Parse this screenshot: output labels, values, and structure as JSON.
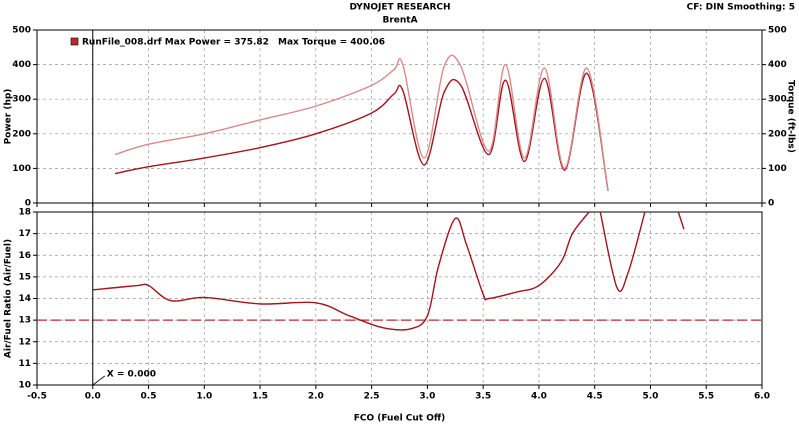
{
  "header": {
    "title": "DYNOJET RESEARCH",
    "subtitle": "BrentA",
    "settings": "CF: DIN  Smoothing: 5"
  },
  "chart_data": [
    {
      "type": "line",
      "ylabel": "Power (hp)",
      "y2label": "Torque (ft-lbs)",
      "legend": {
        "power": "RunFile_008.drf Max Power = 375.82",
        "torque": "Max Torque = 400.06",
        "color": "#c0282d"
      },
      "x": [
        0.2,
        0.5,
        1.0,
        1.5,
        2.0,
        2.5,
        2.7,
        2.78,
        2.97,
        3.15,
        3.3,
        3.55,
        3.7,
        3.87,
        4.05,
        4.23,
        4.43,
        4.62
      ],
      "series": [
        {
          "name": "Power",
          "color": "#a3141c",
          "values": [
            85,
            105,
            130,
            160,
            200,
            260,
            315,
            325,
            110,
            320,
            340,
            140,
            355,
            120,
            360,
            95,
            375,
            35
          ]
        },
        {
          "name": "Torque",
          "color": "#d98a8a",
          "axis": "y2",
          "values": [
            140,
            170,
            200,
            240,
            280,
            340,
            385,
            400,
            130,
            395,
            395,
            150,
            400,
            130,
            390,
            100,
            390,
            35
          ]
        }
      ],
      "xlim": [
        -0.5,
        6.0
      ],
      "xticks": [
        -0.5,
        0,
        0.5,
        1,
        1.5,
        2,
        2.5,
        3,
        3.5,
        4,
        4.5,
        5,
        5.5,
        6
      ],
      "ylim": [
        0,
        500
      ],
      "yticks": [
        0,
        100,
        200,
        300,
        400,
        500
      ],
      "y2lim": [
        0,
        500
      ],
      "y2ticks": [
        0,
        100,
        200,
        300,
        400,
        500
      ],
      "grid": true
    },
    {
      "type": "line",
      "ylabel": "Air/Fuel Ratio (Air/Fuel)",
      "xlabel": "FCO (Fuel Cut Off)",
      "annotation": "X = 0.000",
      "cursor_x": 0,
      "threshold": 13,
      "threshold_color": "#c0282d",
      "x": [
        0.0,
        0.4,
        0.5,
        0.7,
        1.0,
        1.5,
        2.0,
        2.3,
        2.6,
        2.85,
        3.0,
        3.1,
        3.25,
        3.35,
        3.5,
        3.55,
        3.8,
        4.0,
        4.2,
        4.3,
        4.45,
        4.5,
        4.55,
        4.7,
        4.8,
        4.95,
        5.1,
        5.25,
        5.3
      ],
      "series": [
        {
          "name": "Air/Fuel",
          "color": "#a3141c",
          "values": [
            14.4,
            14.6,
            14.6,
            13.9,
            14.05,
            13.75,
            13.8,
            13.2,
            12.65,
            12.6,
            13.2,
            15.5,
            17.7,
            16.5,
            14.2,
            14.0,
            14.3,
            14.6,
            15.7,
            17.0,
            18,
            null,
            18,
            14.5,
            15.2,
            18,
            null,
            18,
            17.2
          ]
        }
      ],
      "xlim": [
        -0.5,
        6.0
      ],
      "xticks": [
        -0.5,
        {
          "value": 0,
          "label": "0.0"
        },
        0.5,
        {
          "value": 1,
          "label": "1.0"
        },
        1.5,
        {
          "value": 2,
          "label": "2.0"
        },
        2.5,
        {
          "value": 3,
          "label": "3.0"
        },
        3.5,
        {
          "value": 4,
          "label": "4.0"
        },
        4.5,
        {
          "value": 5,
          "label": "5.0"
        },
        5.5,
        {
          "value": 6,
          "label": "6.0"
        }
      ],
      "ylim": [
        10,
        18
      ],
      "yticks": [
        10,
        11,
        12,
        13,
        14,
        15,
        16,
        17,
        18
      ],
      "grid": true
    }
  ]
}
